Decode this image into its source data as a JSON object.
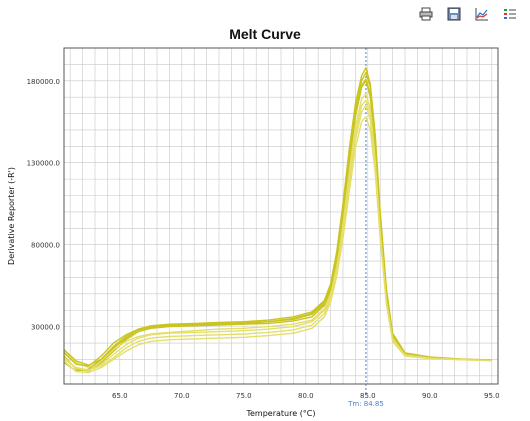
{
  "toolbar": {
    "buttons": [
      {
        "icon": "print-icon",
        "label": "Print"
      },
      {
        "icon": "save-icon",
        "label": "Save"
      },
      {
        "icon": "line-chart-icon",
        "label": "Plot Settings"
      },
      {
        "icon": "legend-icon",
        "label": "Legend"
      }
    ]
  },
  "colors": {
    "curve": "#c9c41f",
    "curve_light": "#e4df6a",
    "grid": "#c8c8c8",
    "tm_line": "#4a7fd0"
  },
  "chart_data": {
    "type": "line",
    "title": "Melt Curve",
    "xlabel": "Temperature (°C)",
    "ylabel": "Derivative Reporter (-R')",
    "xlim": [
      60.5,
      95.5
    ],
    "ylim": [
      -5000,
      200000
    ],
    "x_ticks": [
      65.0,
      70.0,
      75.0,
      80.0,
      85.0,
      90.0,
      95.0
    ],
    "x_tick_labels": [
      "65.0",
      "70.0",
      "75.0",
      "80.0",
      "85.0",
      "90.0",
      "95.0"
    ],
    "y_ticks": [
      30000,
      80000,
      130000,
      180000
    ],
    "y_tick_labels": [
      "30000.0",
      "80000.0",
      "130000.0",
      "180000.0"
    ],
    "grid": true,
    "tm_marker": {
      "x": 84.85,
      "label": "Tm: 84.85"
    },
    "x": [
      60.5,
      61.5,
      62.5,
      63.5,
      64.5,
      65.5,
      66.5,
      67.5,
      69,
      71,
      73,
      75,
      77,
      79,
      80.5,
      81.5,
      82,
      82.5,
      83,
      83.5,
      84,
      84.5,
      84.85,
      85.2,
      85.6,
      86,
      86.5,
      87,
      88,
      90,
      92.5,
      95
    ],
    "series": [
      {
        "values": [
          12000,
          4000,
          3000,
          8000,
          15000,
          22000,
          27000,
          29000,
          30000,
          30500,
          31000,
          31500,
          32000,
          33500,
          36000,
          43000,
          52000,
          70000,
          97000,
          128000,
          158000,
          176000,
          180000,
          170000,
          140000,
          95000,
          50000,
          24000,
          13000,
          11000,
          10000,
          9500
        ]
      },
      {
        "values": [
          15000,
          8000,
          5000,
          9000,
          16000,
          21000,
          24000,
          25500,
          26500,
          27500,
          28500,
          29000,
          30000,
          31500,
          34000,
          41000,
          50000,
          68000,
          94000,
          125000,
          152000,
          169000,
          172000,
          163000,
          134000,
          90000,
          47000,
          23000,
          13000,
          11000,
          10000,
          9500
        ]
      },
      {
        "values": [
          8000,
          3000,
          4000,
          10000,
          18000,
          24000,
          28000,
          30000,
          31000,
          31500,
          32000,
          32500,
          33000,
          35000,
          38000,
          45000,
          54000,
          73000,
          101000,
          133000,
          162000,
          180000,
          185000,
          176000,
          146000,
          99000,
          52000,
          25000,
          13500,
          11000,
          10000,
          9500
        ]
      },
      {
        "values": [
          10000,
          5000,
          3500,
          6000,
          11000,
          17000,
          21000,
          23000,
          24000,
          24500,
          25000,
          25500,
          26500,
          28000,
          31000,
          38000,
          47000,
          64000,
          88000,
          117000,
          144000,
          161000,
          165000,
          156000,
          128000,
          86000,
          45000,
          22000,
          12500,
          10500,
          9800,
          9300
        ]
      },
      {
        "values": [
          14000,
          7000,
          6000,
          12000,
          20000,
          25000,
          28500,
          30500,
          31500,
          32000,
          32500,
          33000,
          34000,
          36000,
          39000,
          46000,
          56000,
          76000,
          105000,
          138000,
          166000,
          183000,
          188000,
          178000,
          147000,
          100000,
          53000,
          26000,
          14000,
          11500,
          10200,
          9700
        ]
      },
      {
        "values": [
          9000,
          2500,
          2000,
          5000,
          10000,
          15000,
          19000,
          21000,
          22000,
          22500,
          23000,
          23500,
          24500,
          26000,
          29000,
          36000,
          45000,
          61000,
          84000,
          112000,
          139000,
          155000,
          158000,
          150000,
          124000,
          84000,
          44000,
          21000,
          12000,
          10500,
          9800,
          9300
        ]
      },
      {
        "values": [
          16000,
          9000,
          6500,
          10000,
          17000,
          23000,
          27000,
          29500,
          30500,
          31000,
          31500,
          32000,
          33000,
          34500,
          37500,
          44000,
          53000,
          71000,
          99000,
          131000,
          159000,
          177000,
          181000,
          172000,
          142000,
          96000,
          50000,
          24500,
          13500,
          11000,
          10100,
          9600
        ]
      },
      {
        "values": [
          11000,
          4500,
          3200,
          7000,
          13000,
          19000,
          23000,
          25000,
          26000,
          26500,
          27000,
          27500,
          28500,
          30000,
          33000,
          40000,
          49000,
          66000,
          91000,
          121000,
          148000,
          165000,
          168000,
          160000,
          131000,
          88000,
          46000,
          22500,
          12800,
          10800,
          9900,
          9400
        ]
      }
    ]
  }
}
